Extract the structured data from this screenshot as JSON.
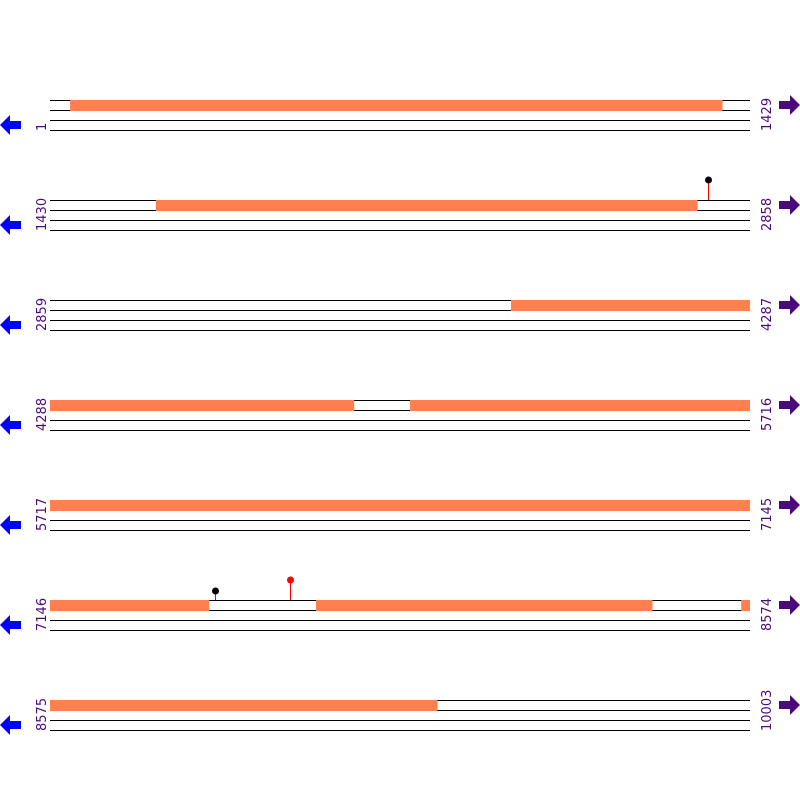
{
  "colors": {
    "feature": "#ff7f50",
    "line": "#000000",
    "left_arrow": "#0000ff",
    "right_arrow": "#4b0a7a",
    "label": "#4b0a7a",
    "marker_stem": "#ff0000"
  },
  "icons": {
    "left": "arrow-left-icon",
    "right": "arrow-right-icon"
  },
  "bp_per_row": 1429,
  "rows": [
    {
      "start": "1",
      "end": "1429",
      "features": [
        [
          42,
          1373
        ]
      ],
      "markers": []
    },
    {
      "start": "1430",
      "end": "2858",
      "features": [
        [
          1646,
          2751
        ]
      ],
      "markers": [
        {
          "pos": 2773,
          "color": "#000000",
          "height": "tall"
        }
      ]
    },
    {
      "start": "2859",
      "end": "4287",
      "features": [
        [
          3800,
          4287
        ]
      ],
      "markers": []
    },
    {
      "start": "4288",
      "end": "5716",
      "features": [
        [
          4288,
          4908
        ],
        [
          5023,
          5716
        ]
      ],
      "markers": []
    },
    {
      "start": "5717",
      "end": "7145",
      "features": [
        [
          5717,
          7145
        ]
      ],
      "markers": []
    },
    {
      "start": "7146",
      "end": "8574",
      "features": [
        [
          7146,
          7470
        ],
        [
          7689,
          8375
        ],
        [
          8557,
          8574
        ]
      ],
      "markers": [
        {
          "pos": 7483,
          "color": "#000000",
          "height": "short"
        },
        {
          "pos": 7636,
          "color": "#ff0000",
          "height": "tall"
        }
      ]
    },
    {
      "start": "8575",
      "end": "10003",
      "features": [
        [
          8575,
          9365
        ]
      ],
      "markers": []
    }
  ]
}
